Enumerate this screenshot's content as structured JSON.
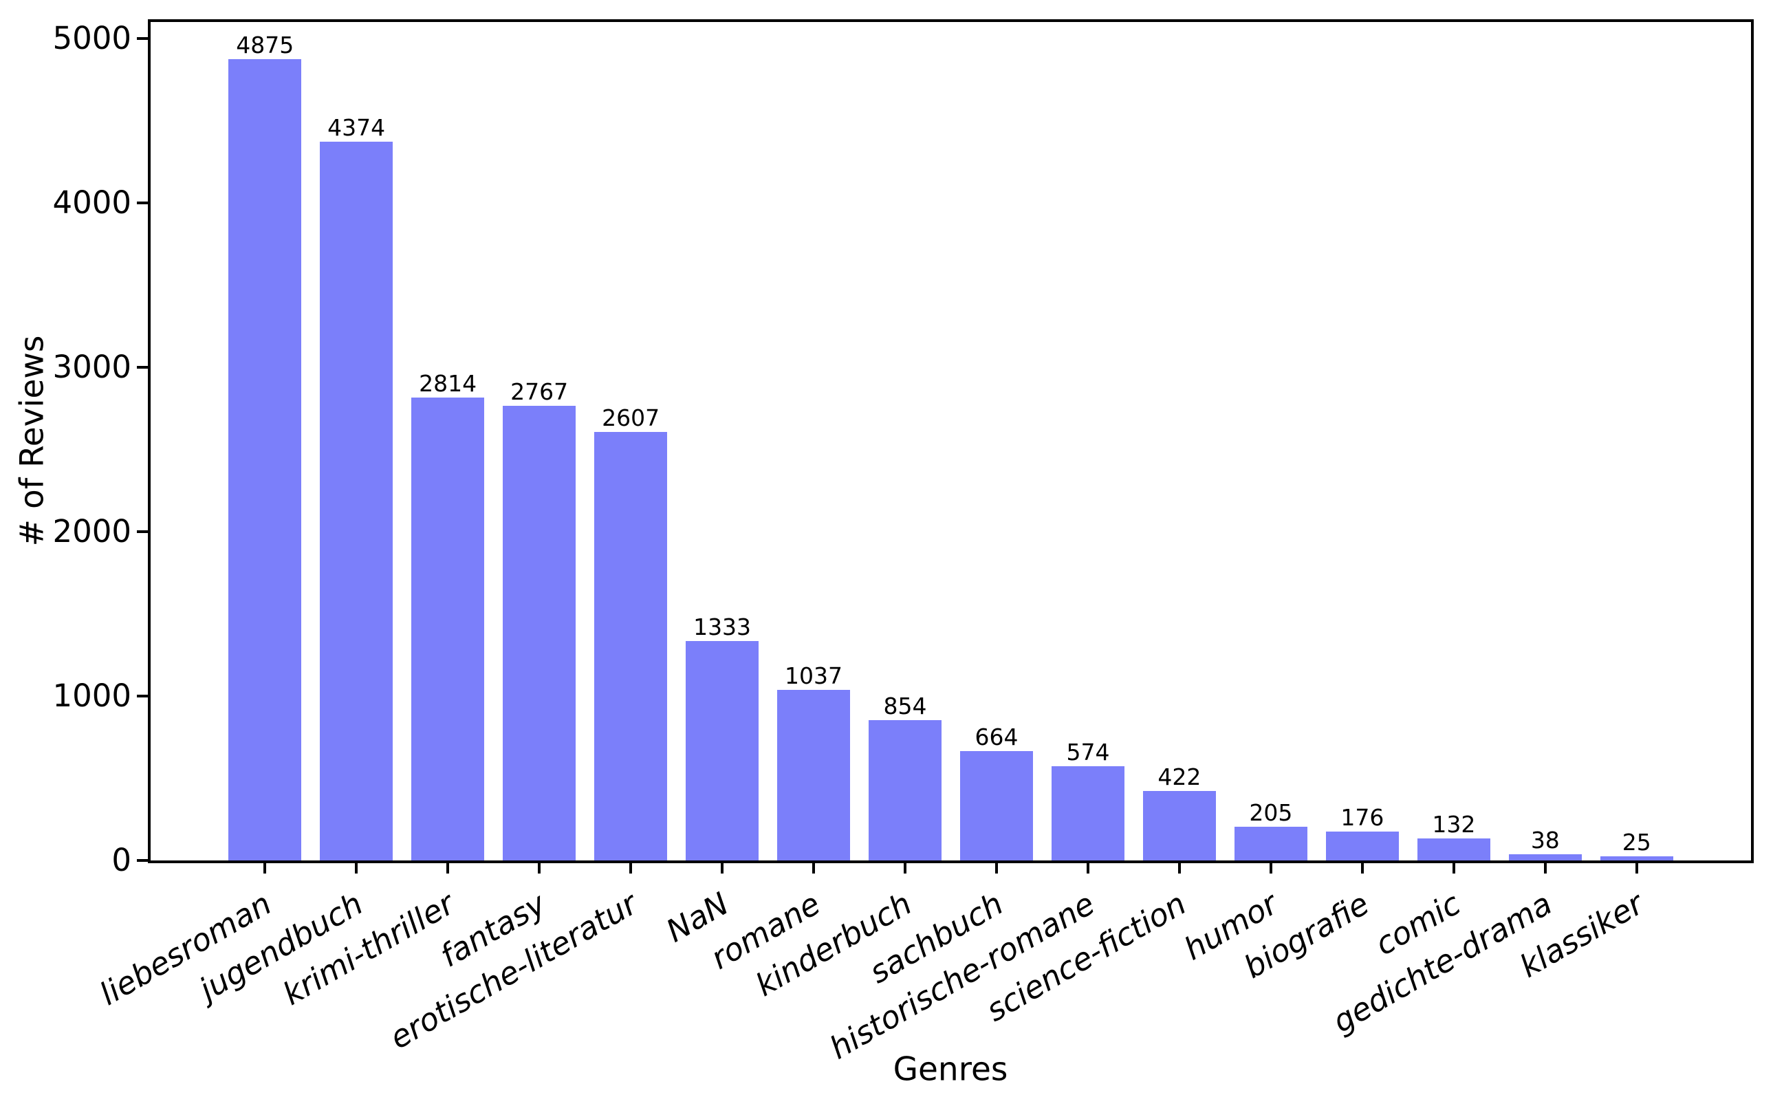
{
  "chart_data": {
    "type": "bar",
    "title": "",
    "xlabel": "Genres",
    "ylabel": "# of Reviews",
    "categories": [
      "liebesroman",
      "jugendbuch",
      "krimi-thriller",
      "fantasy",
      "erotische-literatur",
      "NaN",
      "romane",
      "kinderbuch",
      "sachbuch",
      "historische-romane",
      "science-fiction",
      "humor",
      "biografie",
      "comic",
      "gedichte-drama",
      "klassiker"
    ],
    "values": [
      4875,
      4374,
      2814,
      2767,
      2607,
      1333,
      1037,
      854,
      664,
      574,
      422,
      205,
      176,
      132,
      38,
      25
    ],
    "yticks": [
      0,
      1000,
      2000,
      3000,
      4000,
      5000
    ],
    "ylim": [
      0,
      5100
    ],
    "xtick_rotation_deg": 30,
    "value_labels_shown": true,
    "grid": false,
    "legend": null,
    "bar_color": "#7b7ffa",
    "axis_color": "#000000",
    "text_color": "#000000",
    "background_color": "#ffffff"
  }
}
